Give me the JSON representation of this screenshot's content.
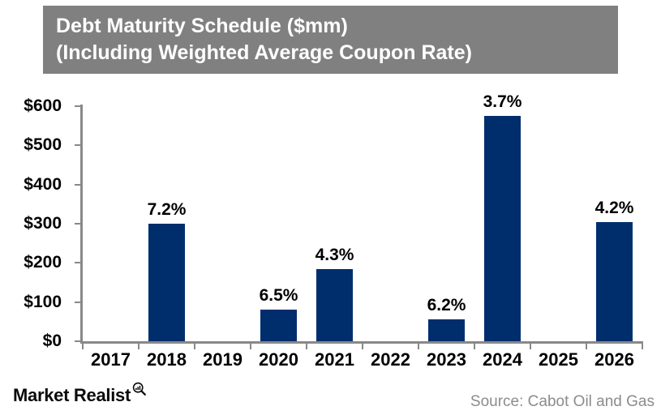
{
  "title": {
    "line1": "Debt Maturity Schedule ($mm)",
    "line2": "(Including Weighted Average Coupon Rate)"
  },
  "footer": {
    "logo_text": "Market Realist",
    "logo_icon": "magnifier-bar-chart-icon",
    "source": "Source: Cabot Oil and Gas"
  },
  "colors": {
    "bar": "#002E6D",
    "title_bg": "#808080",
    "title_text": "#FFFFFF",
    "axis": "#898989",
    "text": "#000000",
    "source_text": "#8C8C8C"
  },
  "chart_data": {
    "type": "bar",
    "title": "Debt Maturity Schedule ($mm)",
    "subtitle": "(Including Weighted Average Coupon Rate)",
    "categories": [
      "2017",
      "2018",
      "2019",
      "2020",
      "2021",
      "2022",
      "2023",
      "2024",
      "2025",
      "2026"
    ],
    "values": [
      0,
      300,
      0,
      80,
      185,
      0,
      55,
      575,
      0,
      305
    ],
    "bar_labels": [
      "",
      "7.2%",
      "",
      "6.5%",
      "4.3%",
      "",
      "6.2%",
      "3.7%",
      "",
      "4.2%"
    ],
    "bar_label_unit": "weighted average coupon rate (%)",
    "value_unit": "$mm",
    "xlabel": "",
    "ylabel": "",
    "ylim": [
      0,
      600
    ],
    "yticks": [
      0,
      100,
      200,
      300,
      400,
      500,
      600
    ],
    "ytick_labels": [
      "$0",
      "$100",
      "$200",
      "$300",
      "$400",
      "$500",
      "$600"
    ],
    "grid": false,
    "legend_position": "none"
  }
}
